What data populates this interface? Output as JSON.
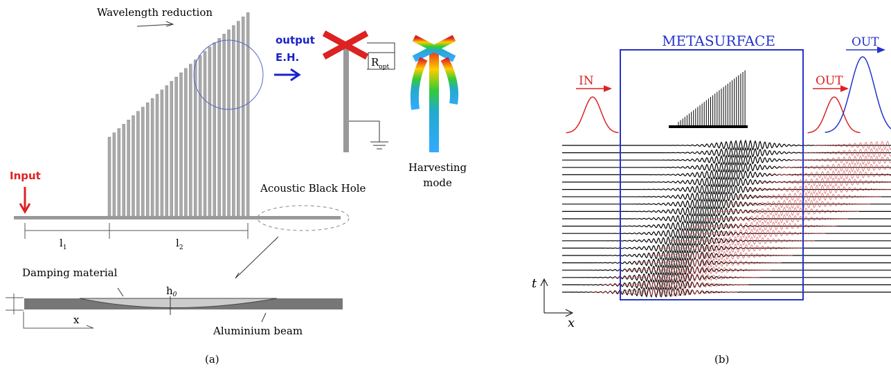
{
  "panel_a": {
    "caption": "(a)",
    "title": "Wavelength reduction",
    "output": "output",
    "eh": "E.H.",
    "resistor": {
      "base": "R",
      "sub": "opt"
    },
    "harvesting": [
      "Harvesting",
      "mode"
    ],
    "input": "Input",
    "abh": "Acoustic Black Hole",
    "l1": {
      "base": "l",
      "sub": "1"
    },
    "l2": {
      "base": "l",
      "sub": "2"
    },
    "damping": "Damping material",
    "h0": {
      "base": "h",
      "sub": "0"
    },
    "x": "x",
    "beam": "Aluminium beam"
  },
  "panel_b": {
    "caption": "(b)",
    "title": "METASURFACE",
    "in": "IN",
    "out_red": "OUT",
    "out_blue": "OUT",
    "t": "t",
    "x": "x"
  }
}
